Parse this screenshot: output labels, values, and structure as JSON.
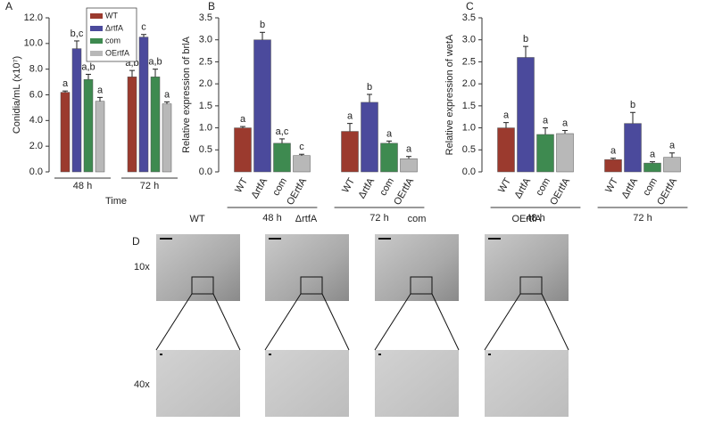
{
  "chart_data": [
    {
      "type": "bar",
      "panel_label": "A",
      "y_label": "Conidia/mL (x10⁷)",
      "x_label": "Time",
      "categories": [
        "48 h",
        "72 h"
      ],
      "series": [
        {
          "name": "WT",
          "color": "#9b3a2e",
          "values": [
            6.2,
            7.4
          ],
          "errors": [
            0.1,
            0.5
          ],
          "significance": [
            "a",
            "a,b"
          ]
        },
        {
          "name": "ΔrtfA",
          "color": "#4b4a9c",
          "values": [
            9.6,
            10.5
          ],
          "errors": [
            0.6,
            0.2
          ],
          "significance": [
            "b,c",
            "c"
          ]
        },
        {
          "name": "com",
          "color": "#3e8a50",
          "values": [
            7.2,
            7.4
          ],
          "errors": [
            0.4,
            0.6
          ],
          "significance": [
            "a,b",
            "a,b"
          ]
        },
        {
          "name": "OErtfA",
          "color": "#b8b8b8",
          "values": [
            5.5,
            5.3
          ],
          "errors": [
            0.3,
            0.15
          ],
          "significance": [
            "a",
            "a"
          ]
        }
      ],
      "ylim": [
        0,
        12
      ],
      "yticks": [
        {
          "value": 0,
          "label": "0.0"
        },
        {
          "value": 2,
          "label": "2.0"
        },
        {
          "value": 4,
          "label": "4.0"
        },
        {
          "value": 6,
          "label": "6.0"
        },
        {
          "value": 8,
          "label": "8.0"
        },
        {
          "value": 10,
          "label": "10.0"
        },
        {
          "value": 12,
          "label": "12.0"
        }
      ],
      "legend": "top-right"
    },
    {
      "type": "bar",
      "panel_label": "B",
      "y_label": "Relative expression of brlA",
      "categories": [
        "48 h",
        "72 h"
      ],
      "series": [
        {
          "name": "WT",
          "color": "#9b3a2e",
          "values": [
            1.0,
            0.92
          ],
          "errors": [
            0.03,
            0.18
          ],
          "significance": [
            "a",
            "a"
          ]
        },
        {
          "name": "ΔrtfA",
          "color": "#4b4a9c",
          "values": [
            3.0,
            1.58
          ],
          "errors": [
            0.17,
            0.18
          ],
          "significance": [
            "b",
            "b"
          ]
        },
        {
          "name": "com",
          "color": "#3e8a50",
          "values": [
            0.65,
            0.65
          ],
          "errors": [
            0.1,
            0.05
          ],
          "significance": [
            "a,c",
            "a"
          ]
        },
        {
          "name": "OErtfA",
          "color": "#b8b8b8",
          "values": [
            0.37,
            0.3
          ],
          "errors": [
            0.03,
            0.05
          ],
          "significance": [
            "c",
            "a"
          ]
        }
      ],
      "ylim": [
        0,
        3.5
      ],
      "yticks": [
        {
          "value": 0,
          "label": "0.0"
        },
        0.5,
        {
          "value": 1,
          "label": "1.0"
        },
        1.5,
        {
          "value": 2,
          "label": "2.0"
        },
        2.5,
        {
          "value": 3,
          "label": "3.0"
        },
        3.5
      ],
      "legend": "none"
    },
    {
      "type": "bar",
      "panel_label": "C",
      "y_label": "Relative expression of wetA",
      "categories": [
        "48 h",
        "72 h"
      ],
      "series": [
        {
          "name": "WT",
          "color": "#9b3a2e",
          "values": [
            1.0,
            0.28
          ],
          "errors": [
            0.12,
            0.03
          ],
          "significance": [
            "a",
            "a"
          ]
        },
        {
          "name": "ΔrtfA",
          "color": "#4b4a9c",
          "values": [
            2.6,
            1.1
          ],
          "errors": [
            0.25,
            0.25
          ],
          "significance": [
            "b",
            "b"
          ]
        },
        {
          "name": "com",
          "color": "#3e8a50",
          "values": [
            0.85,
            0.2
          ],
          "errors": [
            0.15,
            0.03
          ],
          "significance": [
            "a",
            "a"
          ]
        },
        {
          "name": "OErtfA",
          "color": "#b8b8b8",
          "values": [
            0.87,
            0.33
          ],
          "errors": [
            0.07,
            0.1
          ],
          "significance": [
            "a",
            "a"
          ]
        }
      ],
      "ylim": [
        0,
        3.5
      ],
      "yticks": [
        {
          "value": 0,
          "label": "0.0"
        },
        0.5,
        {
          "value": 1,
          "label": "1.0"
        },
        1.5,
        {
          "value": 2,
          "label": "2.0"
        },
        2.5,
        {
          "value": 3,
          "label": "3.0"
        },
        3.5
      ],
      "legend": "none"
    }
  ],
  "panel_d": {
    "label": "D",
    "columns": [
      "WT",
      "ΔrtfA",
      "com",
      "OErtfA"
    ],
    "rows": [
      "10x",
      "40x"
    ]
  }
}
